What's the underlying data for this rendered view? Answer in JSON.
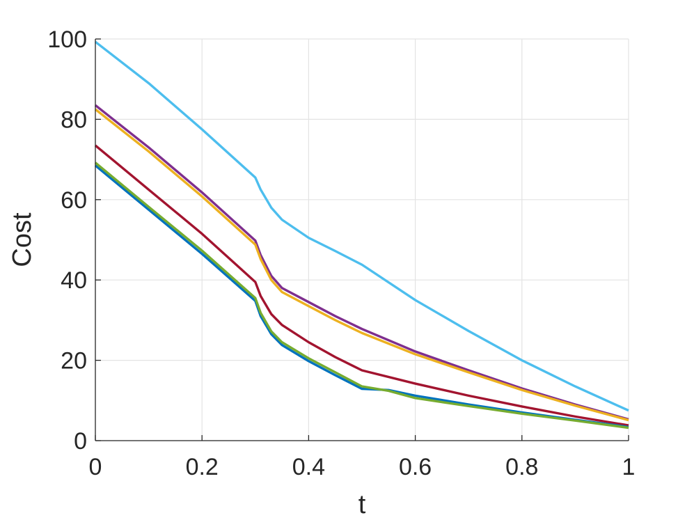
{
  "chart_data": {
    "type": "line",
    "title": "",
    "xlabel": "t",
    "ylabel": "Cost",
    "xlim": [
      0,
      1
    ],
    "ylim": [
      0,
      100
    ],
    "xticks": [
      0,
      0.2,
      0.4,
      0.6,
      0.8,
      1
    ],
    "xtick_labels": [
      "0",
      "0.2",
      "0.4",
      "0.6",
      "0.8",
      "1"
    ],
    "yticks": [
      0,
      20,
      40,
      60,
      80,
      100
    ],
    "ytick_labels": [
      "0",
      "20",
      "40",
      "60",
      "80",
      "100"
    ],
    "grid": true,
    "legend": "none",
    "series": [
      {
        "color": "#4DBEEE",
        "x": [
          0,
          0.1,
          0.2,
          0.3,
          0.31,
          0.33,
          0.35,
          0.4,
          0.45,
          0.5,
          0.6,
          0.7,
          0.8,
          0.9,
          1.0
        ],
        "y": [
          99.3,
          89,
          77.5,
          65.5,
          62.5,
          58,
          55,
          50.5,
          47.2,
          43.8,
          35,
          27.3,
          20,
          13.5,
          7.5
        ]
      },
      {
        "color": "#7E2F8E",
        "x": [
          0,
          0.1,
          0.2,
          0.3,
          0.31,
          0.33,
          0.35,
          0.4,
          0.45,
          0.5,
          0.6,
          0.7,
          0.8,
          0.9,
          1.0
        ],
        "y": [
          83.5,
          73,
          61.8,
          49.8,
          46.2,
          41,
          38,
          34.5,
          31,
          27.8,
          22.2,
          17.5,
          13,
          9,
          5.3
        ]
      },
      {
        "color": "#EDB120",
        "x": [
          0,
          0.1,
          0.2,
          0.3,
          0.31,
          0.33,
          0.35,
          0.4,
          0.45,
          0.5,
          0.6,
          0.7,
          0.8,
          0.9,
          1.0
        ],
        "y": [
          82.5,
          72,
          60.8,
          48.8,
          45.2,
          40,
          37,
          33.5,
          30,
          26.8,
          21.5,
          17,
          12.6,
          8.7,
          5.1
        ]
      },
      {
        "color": "#A2142F",
        "x": [
          0,
          0.1,
          0.2,
          0.3,
          0.31,
          0.33,
          0.35,
          0.4,
          0.45,
          0.5,
          0.6,
          0.7,
          0.8,
          0.9,
          1.0
        ],
        "y": [
          73.5,
          62.5,
          51.5,
          39.5,
          36,
          31.5,
          28.8,
          24.5,
          20.8,
          17.5,
          14.2,
          11.2,
          8.5,
          6,
          3.8
        ]
      },
      {
        "color": "#0072BD",
        "x": [
          0,
          0.1,
          0.2,
          0.3,
          0.31,
          0.33,
          0.35,
          0.4,
          0.45,
          0.5,
          0.55,
          0.6,
          0.7,
          0.8,
          0.9,
          1.0
        ],
        "y": [
          68.5,
          57.5,
          46.5,
          34.8,
          31,
          26.5,
          23.8,
          19.8,
          16.3,
          12.9,
          12.6,
          11.2,
          9,
          7,
          5.2,
          3.4
        ]
      },
      {
        "color": "#77AC30",
        "x": [
          0,
          0.1,
          0.2,
          0.3,
          0.31,
          0.33,
          0.35,
          0.4,
          0.45,
          0.5,
          0.55,
          0.6,
          0.7,
          0.8,
          0.9,
          1.0
        ],
        "y": [
          69.2,
          58.2,
          47.3,
          35.5,
          31.8,
          27.2,
          24.5,
          20.5,
          17,
          13.5,
          12.4,
          10.6,
          8.6,
          6.7,
          5,
          3.2
        ]
      }
    ]
  }
}
